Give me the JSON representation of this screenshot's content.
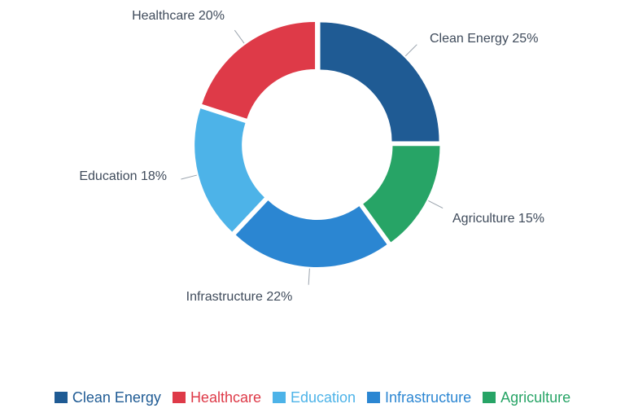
{
  "chart_data": {
    "type": "pie",
    "donut": true,
    "title": "",
    "categories": [
      "Clean Energy",
      "Agriculture",
      "Infrastructure",
      "Education",
      "Healthcare"
    ],
    "values": [
      25,
      15,
      22,
      18,
      20
    ],
    "labels": [
      "Clean Energy 25%",
      "Agriculture 15%",
      "Infrastructure 22%",
      "Education 18%",
      "Healthcare 20%"
    ],
    "colors": [
      "#1f5b94",
      "#27a466",
      "#2b86d2",
      "#4db3e8",
      "#de3a48"
    ],
    "legend_position": "bottom"
  },
  "legend": {
    "items": [
      {
        "label": "Clean Energy",
        "color": "#1f5b94"
      },
      {
        "label": "Healthcare",
        "color": "#de3a48"
      },
      {
        "label": "Education",
        "color": "#4db3e8"
      },
      {
        "label": "Infrastructure",
        "color": "#2b86d2"
      },
      {
        "label": "Agriculture",
        "color": "#27a466"
      }
    ]
  }
}
